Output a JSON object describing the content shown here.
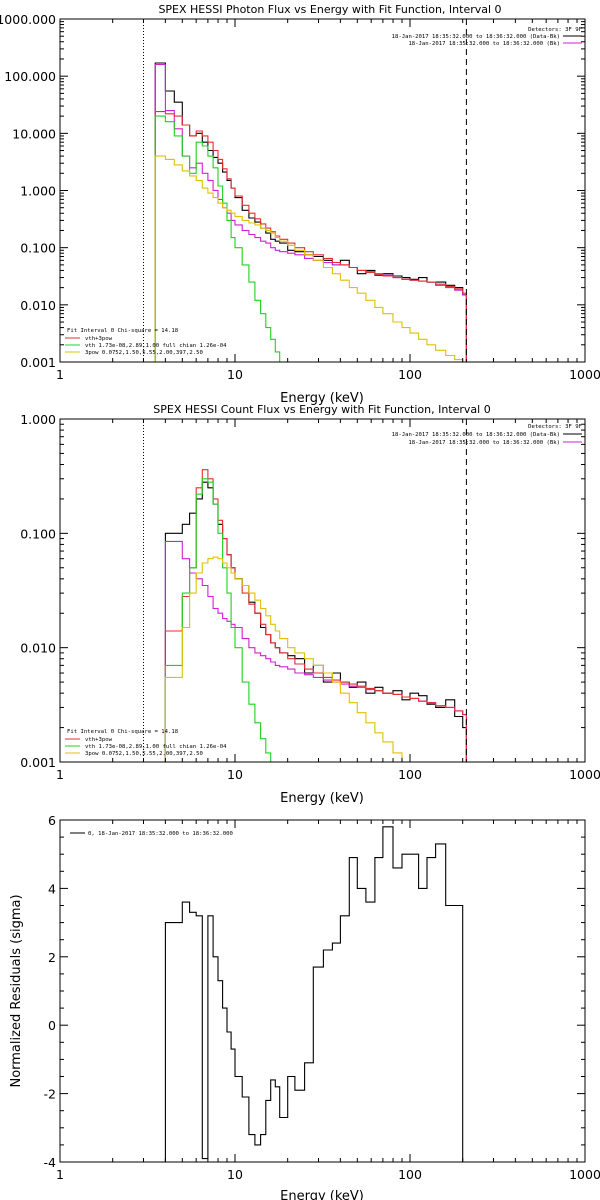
{
  "chart_data": [
    {
      "type": "line",
      "title": "SPEX HESSI Photon Flux vs Energy with Fit Function, Interval 0",
      "xlabel": "Energy (keV)",
      "ylabel": "",
      "xscale": "log",
      "yscale": "log",
      "xlim": [
        1,
        1000
      ],
      "ylim": [
        0.001,
        1000
      ],
      "x_tick_labels": [
        "1",
        "10",
        "100",
        "1000"
      ],
      "y_tick_labels": [
        "0.001",
        "0.010",
        "0.100",
        "1.000",
        "10.000",
        "100.000",
        "1000.000"
      ],
      "fit_range_keV": [
        3,
        210
      ],
      "info_lines": [
        "Detectors: 3F 9F",
        "18-Jan-2017 18:35:32.000 to 18:36:32.000 (Data-Bk)",
        "18-Jan-2017 18:35:32.000 to 18:36:32.000 (Bk)"
      ],
      "legend_lines": [
        "Fit Interval 0   Chi-square = 14.18",
        "vth+3pow",
        "vth 1.73e-08,2.89,1.00  full chian 1.26e-04",
        "3pow 0.0752,1.50,5.55,2.00,397,2.50"
      ],
      "series": [
        {
          "name": "Data-Bk",
          "color": "#000000",
          "x": [
            3,
            3.5,
            4,
            4.5,
            5,
            5.5,
            6,
            6.5,
            7,
            7.5,
            8,
            8.5,
            9,
            9.5,
            10,
            11,
            12,
            13,
            14,
            15,
            16,
            17,
            18,
            20,
            22,
            25,
            28,
            32,
            36,
            40,
            45,
            50,
            56,
            63,
            70,
            80,
            90,
            100,
            112,
            125,
            140,
            160,
            180,
            200,
            210
          ],
          "y": [
            0.001,
            170,
            55,
            35,
            14,
            9,
            10,
            7,
            5,
            3.8,
            3,
            2.1,
            1.5,
            1.1,
            0.75,
            0.45,
            0.33,
            0.28,
            0.22,
            0.18,
            0.14,
            0.13,
            0.12,
            0.09,
            0.085,
            0.075,
            0.07,
            0.06,
            0.05,
            0.06,
            0.045,
            0.035,
            0.04,
            0.033,
            0.035,
            0.032,
            0.03,
            0.028,
            0.03,
            0.025,
            0.025,
            0.022,
            0.02,
            0.015,
            0.001
          ]
        },
        {
          "name": "Bk",
          "color": "#d020d0",
          "x": [
            3,
            3.5,
            4,
            4.5,
            5,
            5.5,
            6,
            6.5,
            7,
            7.5,
            8,
            8.5,
            9,
            9.5,
            10,
            11,
            12,
            13,
            14,
            15,
            16,
            17,
            18,
            20,
            22,
            25,
            28,
            32,
            36,
            40,
            45,
            50,
            56,
            63,
            70,
            80,
            90,
            100,
            112,
            125,
            140,
            160,
            180,
            200,
            210
          ],
          "y": [
            0.001,
            160,
            25,
            12,
            4,
            2.5,
            3,
            2,
            1.5,
            1,
            0.7,
            0.5,
            0.4,
            0.3,
            0.25,
            0.2,
            0.17,
            0.15,
            0.13,
            0.12,
            0.1,
            0.09,
            0.085,
            0.08,
            0.075,
            0.065,
            0.06,
            0.055,
            0.05,
            0.05,
            0.045,
            0.04,
            0.038,
            0.035,
            0.033,
            0.03,
            0.028,
            0.027,
            0.026,
            0.025,
            0.022,
            0.02,
            0.018,
            0.015,
            0.001
          ]
        },
        {
          "name": "vth+3pow",
          "color": "#e03030",
          "x": [
            3,
            3.5,
            4,
            4.5,
            5,
            5.5,
            6,
            6.5,
            7,
            7.5,
            8,
            8.5,
            9,
            9.5,
            10,
            11,
            12,
            13,
            14,
            15,
            16,
            17,
            18,
            20,
            22,
            25,
            28,
            32,
            36,
            40,
            45,
            50,
            56,
            63,
            70,
            80,
            90,
            100,
            112,
            125,
            140,
            160,
            180,
            200,
            210
          ],
          "y": [
            0.001,
            24,
            22,
            20,
            14,
            9,
            11,
            9,
            7,
            5,
            3.5,
            2.4,
            1.6,
            1.1,
            0.8,
            0.55,
            0.4,
            0.32,
            0.26,
            0.22,
            0.19,
            0.16,
            0.14,
            0.12,
            0.1,
            0.085,
            0.075,
            0.065,
            0.055,
            0.05,
            0.045,
            0.04,
            0.037,
            0.034,
            0.032,
            0.03,
            0.028,
            0.027,
            0.026,
            0.025,
            0.023,
            0.021,
            0.019,
            0.016,
            0.001
          ]
        },
        {
          "name": "vth",
          "color": "#20d020",
          "x": [
            3,
            3.5,
            4,
            4.5,
            5,
            5.5,
            6,
            6.5,
            7,
            7.5,
            8,
            8.5,
            9,
            9.5,
            10,
            11,
            12,
            13,
            14,
            15,
            16,
            17,
            18,
            20,
            22
          ],
          "y": [
            0.001,
            20,
            16,
            9,
            4,
            2,
            7,
            6,
            4,
            2.5,
            1.2,
            0.6,
            0.3,
            0.15,
            0.1,
            0.05,
            0.025,
            0.012,
            0.007,
            0.004,
            0.0025,
            0.0015,
            0.001,
            0.001,
            0.001
          ]
        },
        {
          "name": "3pow",
          "color": "#e0c000",
          "x": [
            3,
            3.5,
            4,
            4.5,
            5,
            5.5,
            6,
            6.5,
            7,
            7.5,
            8,
            8.5,
            9,
            9.5,
            10,
            11,
            12,
            13,
            14,
            15,
            16,
            17,
            18,
            20,
            22,
            25,
            28,
            32,
            36,
            40,
            45,
            50,
            56,
            63,
            70,
            80,
            90,
            100,
            112,
            125,
            140,
            160,
            180,
            200,
            210,
            250
          ],
          "y": [
            0.001,
            4,
            3.5,
            2.8,
            2.2,
            1.8,
            1.5,
            1.1,
            0.9,
            0.75,
            0.6,
            0.5,
            0.45,
            0.4,
            0.35,
            0.3,
            0.27,
            0.25,
            0.22,
            0.2,
            0.18,
            0.15,
            0.13,
            0.11,
            0.09,
            0.075,
            0.06,
            0.045,
            0.035,
            0.027,
            0.02,
            0.016,
            0.012,
            0.009,
            0.007,
            0.005,
            0.004,
            0.0032,
            0.0025,
            0.002,
            0.0016,
            0.0013,
            0.0011,
            0.001,
            0.001,
            0.001
          ]
        }
      ]
    },
    {
      "type": "line",
      "title": "SPEX HESSI Count Flux vs Energy with Fit Function, Interval 0",
      "xlabel": "Energy (keV)",
      "ylabel": "",
      "xscale": "log",
      "yscale": "log",
      "xlim": [
        1,
        1000
      ],
      "ylim": [
        0.001,
        1
      ],
      "x_tick_labels": [
        "1",
        "10",
        "100",
        "1000"
      ],
      "y_tick_labels": [
        "0.001",
        "0.010",
        "0.100",
        "1.000"
      ],
      "fit_range_keV": [
        3,
        210
      ],
      "info_lines": [
        "Detectors: 3F 9F",
        "18-Jan-2017 18:35:32.000 to 18:36:32.000 (Data-Bk)",
        "18-Jan-2017 18:35:32.000 to 18:36:32.000 (Bk)"
      ],
      "legend_lines": [
        "Fit Interval 0   Chi-square = 14.18",
        "vth+3pow",
        "vth 1.73e-08,2.89,1.00  full chian 1.26e-04",
        "3pow 0.0752,1.50,5.55,2.00,397,2.50"
      ],
      "series": [
        {
          "name": "Data-Bk",
          "color": "#000000",
          "x": [
            3,
            4,
            5,
            5.5,
            6,
            6.5,
            7,
            7.5,
            8,
            8.5,
            9,
            9.5,
            10,
            11,
            12,
            13,
            14,
            15,
            16,
            17,
            18,
            20,
            22,
            25,
            28,
            32,
            36,
            40,
            45,
            50,
            56,
            63,
            70,
            80,
            90,
            100,
            112,
            125,
            140,
            160,
            180,
            200,
            210
          ],
          "y": [
            0.001,
            0.1,
            0.12,
            0.15,
            0.2,
            0.28,
            0.25,
            0.18,
            0.12,
            0.09,
            0.065,
            0.05,
            0.04,
            0.035,
            0.025,
            0.02,
            0.015,
            0.013,
            0.011,
            0.01,
            0.009,
            0.0085,
            0.008,
            0.006,
            0.007,
            0.005,
            0.006,
            0.005,
            0.0045,
            0.005,
            0.004,
            0.0045,
            0.004,
            0.0042,
            0.0035,
            0.004,
            0.0038,
            0.0032,
            0.003,
            0.0035,
            0.0025,
            0.002,
            0.001
          ]
        },
        {
          "name": "Bk",
          "color": "#d020d0",
          "x": [
            3,
            4,
            5,
            5.5,
            6,
            6.5,
            7,
            7.5,
            8,
            8.5,
            9,
            9.5,
            10,
            11,
            12,
            13,
            14,
            15,
            16,
            17,
            18,
            20,
            22,
            25,
            28,
            32,
            36,
            40,
            45,
            50,
            56,
            63,
            70,
            80,
            90,
            100,
            112,
            125,
            140,
            160,
            180,
            200,
            210
          ],
          "y": [
            0.001,
            0.085,
            0.06,
            0.045,
            0.04,
            0.035,
            0.028,
            0.022,
            0.02,
            0.018,
            0.017,
            0.016,
            0.015,
            0.012,
            0.01,
            0.009,
            0.0085,
            0.008,
            0.0075,
            0.007,
            0.0068,
            0.0065,
            0.006,
            0.0058,
            0.0055,
            0.0052,
            0.005,
            0.0048,
            0.0046,
            0.0045,
            0.0043,
            0.0042,
            0.004,
            0.0039,
            0.0037,
            0.0036,
            0.0034,
            0.0033,
            0.0031,
            0.003,
            0.0028,
            0.0026,
            0.001
          ]
        },
        {
          "name": "vth+3pow",
          "color": "#e03030",
          "x": [
            3,
            4,
            5,
            5.5,
            6,
            6.5,
            7,
            7.5,
            8,
            8.5,
            9,
            9.5,
            10,
            11,
            12,
            13,
            14,
            15,
            16,
            17,
            18,
            20,
            22,
            25,
            28,
            32,
            36,
            40,
            45,
            50,
            56,
            63,
            70,
            80,
            90,
            100,
            112,
            125,
            140,
            160,
            180,
            200,
            210
          ],
          "y": [
            0.001,
            0.014,
            0.028,
            0.05,
            0.25,
            0.36,
            0.3,
            0.2,
            0.13,
            0.09,
            0.065,
            0.05,
            0.04,
            0.03,
            0.024,
            0.02,
            0.016,
            0.013,
            0.011,
            0.01,
            0.009,
            0.008,
            0.0072,
            0.0065,
            0.006,
            0.0055,
            0.0052,
            0.005,
            0.0048,
            0.0046,
            0.0044,
            0.0042,
            0.004,
            0.0039,
            0.0037,
            0.0036,
            0.0034,
            0.0033,
            0.0031,
            0.003,
            0.0028,
            0.0026,
            0.001
          ]
        },
        {
          "name": "vth",
          "color": "#20d020",
          "x": [
            3,
            4,
            5,
            5.5,
            6,
            6.5,
            7,
            7.5,
            8,
            8.5,
            9,
            9.5,
            10,
            11,
            12,
            13,
            14,
            15,
            16,
            17,
            18,
            20
          ],
          "y": [
            0.001,
            0.007,
            0.03,
            0.05,
            0.22,
            0.3,
            0.28,
            0.18,
            0.1,
            0.05,
            0.03,
            0.015,
            0.01,
            0.005,
            0.0032,
            0.0022,
            0.0016,
            0.0012,
            0.001,
            0.001,
            0.001,
            0.001
          ]
        },
        {
          "name": "3pow",
          "color": "#e0c000",
          "x": [
            3,
            4,
            5,
            5.5,
            6,
            6.5,
            7,
            7.5,
            8,
            8.5,
            9,
            9.5,
            10,
            11,
            12,
            13,
            14,
            15,
            16,
            17,
            18,
            20,
            22,
            25,
            28,
            32,
            36,
            40,
            45,
            50,
            56,
            63,
            70,
            80,
            90,
            100
          ],
          "y": [
            0.001,
            0.0055,
            0.015,
            0.03,
            0.045,
            0.055,
            0.06,
            0.062,
            0.06,
            0.055,
            0.05,
            0.045,
            0.04,
            0.035,
            0.03,
            0.026,
            0.022,
            0.019,
            0.016,
            0.014,
            0.012,
            0.01,
            0.009,
            0.008,
            0.007,
            0.006,
            0.005,
            0.004,
            0.0033,
            0.0027,
            0.0022,
            0.0018,
            0.0015,
            0.0012,
            0.001,
            0.001
          ]
        }
      ]
    },
    {
      "type": "line",
      "title": "",
      "xlabel": "Energy (keV)",
      "ylabel": "Normalized Residuals (sigma)",
      "xscale": "log",
      "yscale": "linear",
      "xlim": [
        1,
        1000
      ],
      "ylim": [
        -4,
        6
      ],
      "x_tick_labels": [
        "1",
        "10",
        "100",
        "1000"
      ],
      "y_tick_labels": [
        "-4",
        "-2",
        "0",
        "2",
        "4",
        "6"
      ],
      "legend_lines": [
        "0, 18-Jan-2017 18:35:32.000 to 18:36:32.000"
      ],
      "series": [
        {
          "name": "0, 18-Jan-2017 18:35:32.000 to 18:36:32.000",
          "color": "#000000",
          "x": [
            3,
            4,
            5,
            5.5,
            6,
            6.5,
            7,
            7.5,
            8,
            8.5,
            9,
            9.5,
            10,
            11,
            12,
            13,
            14,
            15,
            16,
            17,
            18,
            20,
            22,
            25,
            28,
            32,
            36,
            40,
            45,
            50,
            56,
            63,
            70,
            80,
            90,
            100,
            112,
            125,
            140,
            160,
            180,
            200,
            210
          ],
          "y": [
            -4,
            3.0,
            3.6,
            3.3,
            3.2,
            -3.9,
            3.2,
            2.0,
            1.3,
            0.5,
            -0.2,
            -0.7,
            -1.5,
            -2.1,
            -3.2,
            -3.5,
            -3.2,
            -2.2,
            -1.6,
            -1.8,
            -2.7,
            -1.5,
            -1.9,
            -1.1,
            1.7,
            2.2,
            2.4,
            3.2,
            4.9,
            4.0,
            3.6,
            4.9,
            5.8,
            4.6,
            5.0,
            5.0,
            4.0,
            4.9,
            5.3,
            3.5,
            3.5,
            -4,
            -4
          ]
        }
      ]
    }
  ]
}
